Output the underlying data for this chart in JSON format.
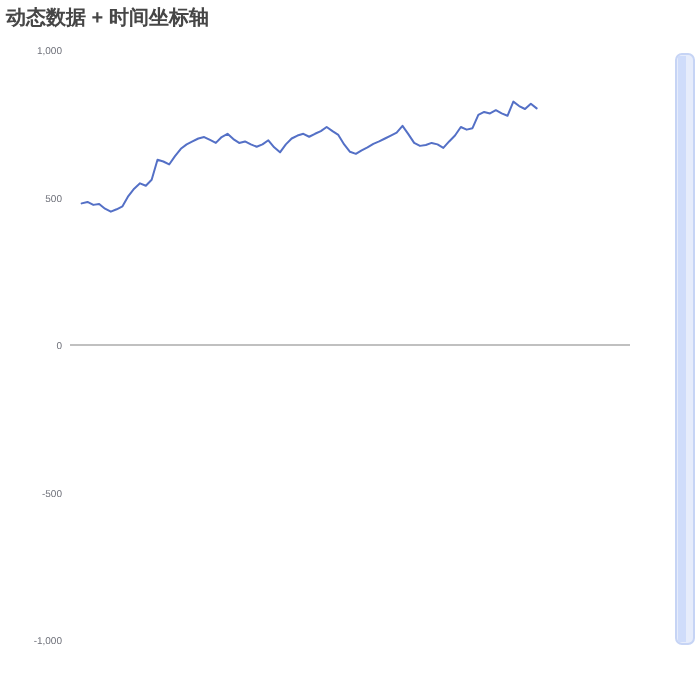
{
  "chart_data": {
    "type": "line",
    "title": "动态数据 + 时间坐标轴",
    "categories": [
      null,
      null,
      null,
      null,
      null,
      null,
      null,
      null,
      null,
      null,
      null,
      null,
      null,
      null,
      null,
      null,
      null,
      null,
      null,
      null,
      null,
      null,
      null,
      null,
      null,
      null,
      null,
      null,
      null,
      null,
      null,
      null,
      null,
      null,
      null,
      null,
      null,
      null,
      null,
      null,
      null,
      null,
      null,
      null,
      null,
      null,
      null,
      null,
      null,
      null,
      null,
      null,
      null,
      null,
      null,
      null,
      null,
      null,
      null,
      null,
      null,
      null,
      null,
      null,
      null,
      null,
      null,
      null,
      null,
      null,
      null,
      null,
      null,
      null,
      null,
      null,
      null,
      null,
      null,
      null,
      null,
      null,
      null,
      null,
      null,
      null,
      null,
      null,
      null,
      null,
      null,
      null,
      null,
      null,
      null,
      null,
      null
    ],
    "series": [
      {
        "color": "#5470c6",
        "values": [
          null,
          null,
          480,
          485,
          475,
          478,
          462,
          452,
          460,
          470,
          505,
          530,
          548,
          540,
          560,
          628,
          622,
          612,
          640,
          665,
          680,
          690,
          700,
          705,
          695,
          685,
          705,
          716,
          698,
          685,
          690,
          680,
          672,
          680,
          694,
          670,
          653,
          680,
          700,
          710,
          716,
          706,
          716,
          725,
          739,
          725,
          712,
          680,
          655,
          648,
          660,
          670,
          682,
          690,
          700,
          710,
          720,
          743,
          715,
          685,
          675,
          678,
          685,
          680,
          668,
          690,
          710,
          739,
          730,
          735,
          780,
          790,
          785,
          796,
          785,
          777,
          825,
          810,
          800,
          818,
          802,
          null,
          null,
          null,
          null,
          null,
          null,
          null,
          null,
          null,
          null,
          null,
          null,
          null,
          null,
          null,
          null
        ]
      }
    ],
    "ylim": [
      -1000,
      1000
    ],
    "yticks": [
      {
        "value": 1000,
        "label": "1,000"
      },
      500,
      0,
      -500,
      {
        "value": -1000,
        "label": "-1,000"
      }
    ],
    "tick_labels": "y"
  }
}
